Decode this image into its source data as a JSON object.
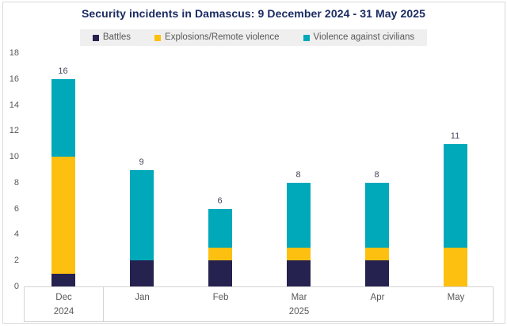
{
  "chart_data": {
    "type": "bar",
    "stacked": true,
    "title": "Security incidents in Damascus: 9 December 2024 - 31 May 2025",
    "title_color": "#1a2b63",
    "categories": [
      "Dec",
      "Jan",
      "Feb",
      "Mar",
      "Apr",
      "May"
    ],
    "year_groups": [
      {
        "label": "2024",
        "from": 0,
        "to": 0
      },
      {
        "label": "2025",
        "from": 1,
        "to": 5
      }
    ],
    "series": [
      {
        "name": "Battles",
        "color": "#262250",
        "values": [
          1,
          2,
          2,
          2,
          2,
          0
        ]
      },
      {
        "name": "Explosions/Remote violence",
        "color": "#fdc010",
        "values": [
          9,
          0,
          1,
          1,
          1,
          3
        ]
      },
      {
        "name": "Violence against civilians",
        "color": "#00a9ba",
        "values": [
          6,
          7,
          3,
          5,
          5,
          8
        ]
      }
    ],
    "totals": [
      16,
      9,
      6,
      8,
      8,
      11
    ],
    "ylabel": "",
    "xlabel": "",
    "ylim": [
      0,
      18
    ],
    "ytick_step": 2,
    "grid": false,
    "legend_position": "top",
    "legend_background": "#efefef"
  }
}
